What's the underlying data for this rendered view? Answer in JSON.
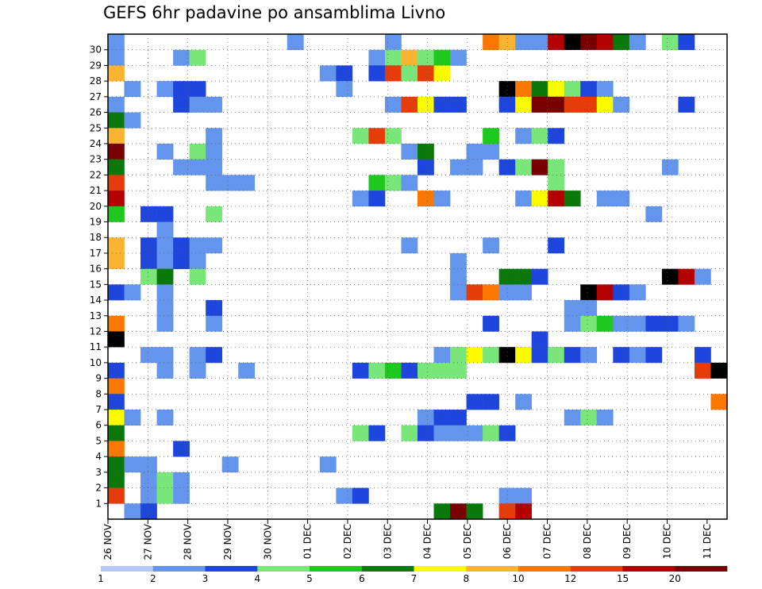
{
  "chart_data": {
    "type": "heatmap",
    "title": "GEFS 6hr padavine po ansamblima Livno",
    "xlabel": "",
    "ylabel": "",
    "x_ticks": [
      "26 NOV",
      "27 NOV",
      "28 NOV",
      "29 NOV",
      "30 NOV",
      "01 DEC",
      "02 DEC",
      "03 DEC",
      "04 DEC",
      "05 DEC",
      "06 DEC",
      "07 DEC",
      "08 DEC",
      "09 DEC",
      "10 DEC",
      "11 DEC"
    ],
    "x_range_steps": [
      0,
      62
    ],
    "y_ticks": [
      1,
      2,
      3,
      4,
      5,
      6,
      7,
      8,
      9,
      10,
      11,
      12,
      13,
      14,
      15,
      16,
      17,
      18,
      19,
      20,
      21,
      22,
      23,
      24,
      25,
      26,
      27,
      28,
      29,
      30
    ],
    "y_range": [
      0,
      30
    ],
    "legend": {
      "position": "bottom",
      "labels": [
        "1",
        "2",
        "3",
        "4",
        "5",
        "6",
        "7",
        "8",
        "10",
        "12",
        "15",
        "20"
      ],
      "colors": [
        "#b4c8f8",
        "#6495ed",
        "#1e46dc",
        "#78e678",
        "#1ec81e",
        "#0a780a",
        "#fafa00",
        "#fab432",
        "#fa7800",
        "#e63c0a",
        "#b40000",
        "#780000"
      ]
    },
    "cells": [
      [
        0,
        30,
        1
      ],
      [
        11,
        30,
        1
      ],
      [
        17,
        30,
        1
      ],
      [
        23,
        30,
        8
      ],
      [
        24,
        30,
        7
      ],
      [
        25,
        30,
        1
      ],
      [
        26,
        30,
        1
      ],
      [
        27,
        30,
        10
      ],
      [
        28,
        30,
        12
      ],
      [
        29,
        30,
        11
      ],
      [
        30,
        30,
        10
      ],
      [
        31,
        30,
        5
      ],
      [
        32,
        30,
        1
      ],
      [
        34,
        30,
        3
      ],
      [
        35,
        30,
        2
      ],
      [
        0,
        29,
        1
      ],
      [
        4,
        29,
        1
      ],
      [
        5,
        29,
        3
      ],
      [
        16,
        29,
        1
      ],
      [
        17,
        29,
        3
      ],
      [
        18,
        29,
        7
      ],
      [
        19,
        29,
        3
      ],
      [
        20,
        29,
        4
      ],
      [
        21,
        29,
        1
      ],
      [
        0,
        28,
        7
      ],
      [
        13,
        28,
        1
      ],
      [
        14,
        28,
        2
      ],
      [
        16,
        28,
        2
      ],
      [
        17,
        28,
        9
      ],
      [
        18,
        28,
        3
      ],
      [
        19,
        28,
        9
      ],
      [
        20,
        28,
        6
      ],
      [
        1,
        27,
        1
      ],
      [
        3,
        27,
        1
      ],
      [
        4,
        27,
        2
      ],
      [
        5,
        27,
        2
      ],
      [
        14,
        27,
        1
      ],
      [
        24,
        27,
        12
      ],
      [
        25,
        27,
        8
      ],
      [
        26,
        27,
        5
      ],
      [
        27,
        27,
        6
      ],
      [
        28,
        27,
        3
      ],
      [
        29,
        27,
        2
      ],
      [
        30,
        27,
        1
      ],
      [
        0,
        26,
        1
      ],
      [
        4,
        26,
        2
      ],
      [
        5,
        26,
        1
      ],
      [
        6,
        26,
        1
      ],
      [
        17,
        26,
        1
      ],
      [
        18,
        26,
        9
      ],
      [
        19,
        26,
        6
      ],
      [
        20,
        26,
        2
      ],
      [
        21,
        26,
        2
      ],
      [
        24,
        26,
        2
      ],
      [
        25,
        26,
        6
      ],
      [
        26,
        26,
        11
      ],
      [
        27,
        26,
        11
      ],
      [
        28,
        26,
        9
      ],
      [
        29,
        26,
        9
      ],
      [
        30,
        26,
        6
      ],
      [
        31,
        26,
        1
      ],
      [
        35,
        26,
        2
      ],
      [
        0,
        25,
        5
      ],
      [
        1,
        25,
        1
      ],
      [
        0,
        24,
        7
      ],
      [
        6,
        24,
        1
      ],
      [
        15,
        24,
        3
      ],
      [
        16,
        24,
        9
      ],
      [
        17,
        24,
        3
      ],
      [
        23,
        24,
        4
      ],
      [
        25,
        24,
        1
      ],
      [
        26,
        24,
        3
      ],
      [
        27,
        24,
        2
      ],
      [
        0,
        23,
        11
      ],
      [
        3,
        23,
        1
      ],
      [
        5,
        23,
        3
      ],
      [
        6,
        23,
        1
      ],
      [
        18,
        23,
        1
      ],
      [
        19,
        23,
        5
      ],
      [
        22,
        23,
        1
      ],
      [
        23,
        23,
        1
      ],
      [
        0,
        22,
        5
      ],
      [
        4,
        22,
        1
      ],
      [
        5,
        22,
        1
      ],
      [
        6,
        22,
        1
      ],
      [
        19,
        22,
        2
      ],
      [
        21,
        22,
        1
      ],
      [
        22,
        22,
        1
      ],
      [
        24,
        22,
        2
      ],
      [
        25,
        22,
        3
      ],
      [
        26,
        22,
        11
      ],
      [
        27,
        22,
        3
      ],
      [
        34,
        22,
        1
      ],
      [
        0,
        21,
        9
      ],
      [
        6,
        21,
        1
      ],
      [
        7,
        21,
        1
      ],
      [
        8,
        21,
        1
      ],
      [
        16,
        21,
        4
      ],
      [
        17,
        21,
        3
      ],
      [
        18,
        21,
        1
      ],
      [
        27,
        21,
        3
      ],
      [
        0,
        20,
        10
      ],
      [
        15,
        20,
        1
      ],
      [
        16,
        20,
        2
      ],
      [
        19,
        20,
        8
      ],
      [
        20,
        20,
        1
      ],
      [
        25,
        20,
        1
      ],
      [
        26,
        20,
        6
      ],
      [
        27,
        20,
        10
      ],
      [
        28,
        20,
        5
      ],
      [
        30,
        20,
        1
      ],
      [
        31,
        20,
        1
      ],
      [
        0,
        19,
        4
      ],
      [
        2,
        19,
        2
      ],
      [
        3,
        19,
        2
      ],
      [
        6,
        19,
        3
      ],
      [
        33,
        19,
        1
      ],
      [
        3,
        18,
        1
      ],
      [
        0,
        17,
        7
      ],
      [
        2,
        17,
        2
      ],
      [
        3,
        17,
        1
      ],
      [
        4,
        17,
        2
      ],
      [
        5,
        17,
        1
      ],
      [
        6,
        17,
        1
      ],
      [
        18,
        17,
        1
      ],
      [
        23,
        17,
        1
      ],
      [
        27,
        17,
        2
      ],
      [
        0,
        16,
        7
      ],
      [
        2,
        16,
        2
      ],
      [
        3,
        16,
        1
      ],
      [
        4,
        16,
        2
      ],
      [
        5,
        16,
        1
      ],
      [
        21,
        16,
        1
      ],
      [
        2,
        15,
        3
      ],
      [
        3,
        15,
        5
      ],
      [
        5,
        15,
        3
      ],
      [
        21,
        15,
        1
      ],
      [
        24,
        15,
        5
      ],
      [
        25,
        15,
        5
      ],
      [
        26,
        15,
        2
      ],
      [
        34,
        15,
        12
      ],
      [
        35,
        15,
        10
      ],
      [
        36,
        15,
        1
      ],
      [
        0,
        14,
        2
      ],
      [
        1,
        14,
        1
      ],
      [
        3,
        14,
        1
      ],
      [
        21,
        14,
        1
      ],
      [
        22,
        14,
        9
      ],
      [
        23,
        14,
        8
      ],
      [
        24,
        14,
        1
      ],
      [
        25,
        14,
        1
      ],
      [
        29,
        14,
        12
      ],
      [
        30,
        14,
        10
      ],
      [
        31,
        14,
        2
      ],
      [
        32,
        14,
        1
      ],
      [
        3,
        13,
        1
      ],
      [
        6,
        13,
        2
      ],
      [
        28,
        13,
        1
      ],
      [
        29,
        13,
        1
      ],
      [
        0,
        12,
        8
      ],
      [
        3,
        12,
        1
      ],
      [
        6,
        12,
        1
      ],
      [
        23,
        12,
        2
      ],
      [
        28,
        12,
        1
      ],
      [
        29,
        12,
        3
      ],
      [
        30,
        12,
        4
      ],
      [
        31,
        12,
        1
      ],
      [
        32,
        12,
        1
      ],
      [
        33,
        12,
        2
      ],
      [
        34,
        12,
        2
      ],
      [
        35,
        12,
        1
      ],
      [
        0,
        11,
        12
      ],
      [
        26,
        11,
        2
      ],
      [
        2,
        10,
        1
      ],
      [
        3,
        10,
        1
      ],
      [
        5,
        10,
        1
      ],
      [
        6,
        10,
        2
      ],
      [
        20,
        10,
        1
      ],
      [
        21,
        10,
        3
      ],
      [
        22,
        10,
        6
      ],
      [
        23,
        10,
        3
      ],
      [
        24,
        10,
        12
      ],
      [
        25,
        10,
        6
      ],
      [
        26,
        10,
        2
      ],
      [
        27,
        10,
        3
      ],
      [
        28,
        10,
        2
      ],
      [
        29,
        10,
        1
      ],
      [
        31,
        10,
        2
      ],
      [
        32,
        10,
        1
      ],
      [
        33,
        10,
        2
      ],
      [
        36,
        10,
        2
      ],
      [
        0,
        9,
        2
      ],
      [
        3,
        9,
        1
      ],
      [
        5,
        9,
        1
      ],
      [
        8,
        9,
        1
      ],
      [
        15,
        9,
        2
      ],
      [
        16,
        9,
        3
      ],
      [
        17,
        9,
        4
      ],
      [
        18,
        9,
        2
      ],
      [
        19,
        9,
        3
      ],
      [
        20,
        9,
        3
      ],
      [
        21,
        9,
        3
      ],
      [
        36,
        9,
        9
      ],
      [
        37,
        9,
        12
      ],
      [
        0,
        8,
        8
      ],
      [
        0,
        7,
        2
      ],
      [
        22,
        7,
        2
      ],
      [
        23,
        7,
        2
      ],
      [
        25,
        7,
        1
      ],
      [
        37,
        7,
        8
      ],
      [
        0,
        6,
        6
      ],
      [
        1,
        6,
        1
      ],
      [
        3,
        6,
        1
      ],
      [
        19,
        6,
        1
      ],
      [
        20,
        6,
        2
      ],
      [
        21,
        6,
        2
      ],
      [
        28,
        6,
        1
      ],
      [
        29,
        6,
        3
      ],
      [
        30,
        6,
        1
      ],
      [
        0,
        5,
        5
      ],
      [
        15,
        5,
        3
      ],
      [
        16,
        5,
        2
      ],
      [
        18,
        5,
        3
      ],
      [
        19,
        5,
        2
      ],
      [
        20,
        5,
        1
      ],
      [
        21,
        5,
        1
      ],
      [
        22,
        5,
        1
      ],
      [
        23,
        5,
        3
      ],
      [
        24,
        5,
        2
      ],
      [
        0,
        4,
        8
      ],
      [
        4,
        4,
        2
      ],
      [
        0,
        3,
        5
      ],
      [
        1,
        3,
        1
      ],
      [
        2,
        3,
        1
      ],
      [
        7,
        3,
        1
      ],
      [
        13,
        3,
        1
      ],
      [
        0,
        2,
        5
      ],
      [
        2,
        2,
        1
      ],
      [
        3,
        2,
        3
      ],
      [
        4,
        2,
        1
      ],
      [
        0,
        1,
        9
      ],
      [
        2,
        1,
        1
      ],
      [
        3,
        1,
        3
      ],
      [
        4,
        1,
        1
      ],
      [
        14,
        1,
        1
      ],
      [
        15,
        1,
        2
      ],
      [
        24,
        1,
        1
      ],
      [
        25,
        1,
        1
      ],
      [
        1,
        0,
        1
      ],
      [
        2,
        0,
        2
      ],
      [
        20,
        0,
        5
      ],
      [
        21,
        0,
        11
      ],
      [
        22,
        0,
        5
      ],
      [
        24,
        0,
        9
      ],
      [
        25,
        0,
        10
      ]
    ]
  }
}
